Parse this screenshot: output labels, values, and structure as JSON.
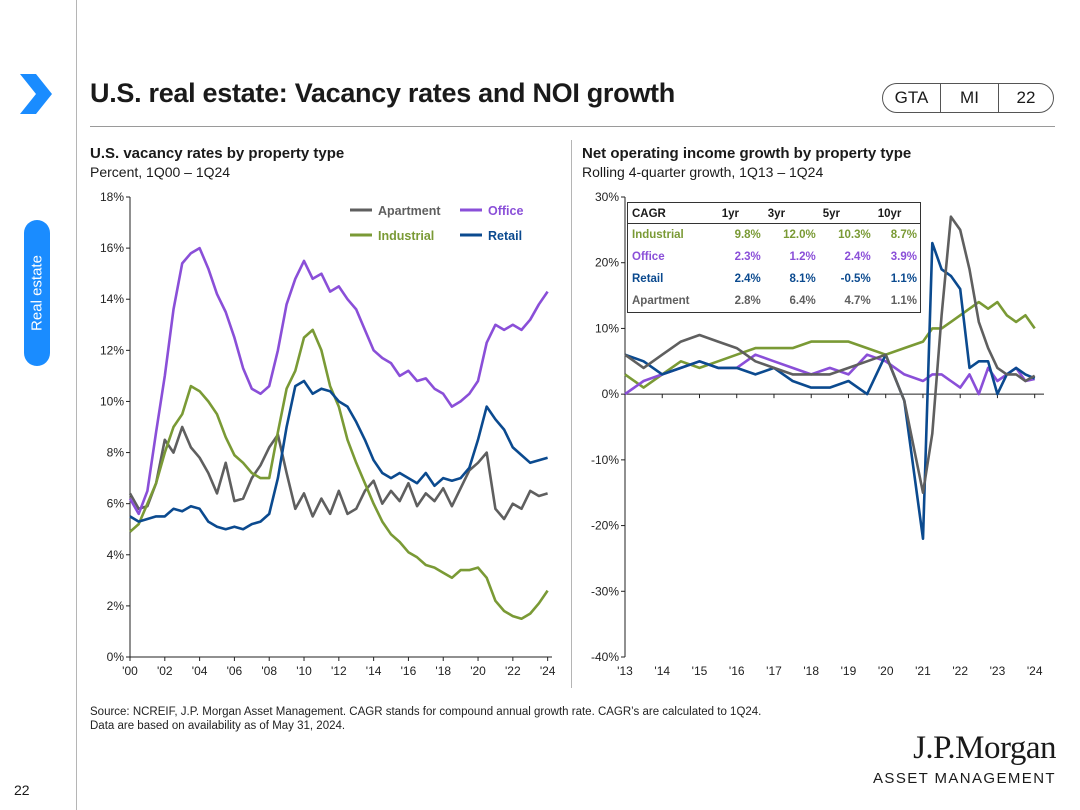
{
  "header": {
    "title": "U.S. real estate: Vacancy rates and NOI growth",
    "tags": [
      "GTA",
      "MI",
      "22"
    ],
    "side_tab": "Real estate",
    "page_number": "22"
  },
  "colors": {
    "apartment": "#5f5f5f",
    "office": "#8a4fd8",
    "industrial": "#7a9a35",
    "retail": "#0b4a8f",
    "accent": "#1a8cff"
  },
  "left": {
    "title": "U.S. vacancy rates by property type",
    "subtitle": "Percent, 1Q00 – 1Q24"
  },
  "right": {
    "title": "Net operating income growth by property type",
    "subtitle": "Rolling 4-quarter growth, 1Q13 – 1Q24"
  },
  "table": {
    "headers": [
      "CAGR",
      "1yr",
      "3yr",
      "5yr",
      "10yr"
    ],
    "rows": [
      {
        "name": "Industrial",
        "color": "#7a9a35",
        "values": [
          "9.8%",
          "12.0%",
          "10.3%",
          "8.7%"
        ]
      },
      {
        "name": "Office",
        "color": "#8a4fd8",
        "values": [
          "2.3%",
          "1.2%",
          "2.4%",
          "3.9%"
        ]
      },
      {
        "name": "Retail",
        "color": "#0b4a8f",
        "values": [
          "2.4%",
          "8.1%",
          "-0.5%",
          "1.1%"
        ]
      },
      {
        "name": "Apartment",
        "color": "#5f5f5f",
        "values": [
          "2.8%",
          "6.4%",
          "4.7%",
          "1.1%"
        ]
      }
    ]
  },
  "source": {
    "line1": "Source: NCREIF, J.P. Morgan Asset Management. CAGR stands for compound annual growth rate. CAGR’s are calculated to 1Q24.",
    "line2": "Data are based on availability as of May 31, 2024."
  },
  "logo": {
    "line1": "J.P.Morgan",
    "line2": "ASSET MANAGEMENT"
  },
  "chart_data": [
    {
      "type": "line",
      "title": "U.S. vacancy rates by property type",
      "ylabel": "Percent",
      "ylim": [
        0,
        18
      ],
      "yticks": [
        0,
        2,
        4,
        6,
        8,
        10,
        12,
        14,
        16,
        18
      ],
      "ytick_labels": [
        "0%",
        "2%",
        "4%",
        "6%",
        "8%",
        "10%",
        "12%",
        "14%",
        "16%",
        "18%"
      ],
      "xlim": [
        2000,
        2024.25
      ],
      "xticks": [
        2000,
        2002,
        2004,
        2006,
        2008,
        2010,
        2012,
        2014,
        2016,
        2018,
        2020,
        2022,
        2024
      ],
      "xtick_labels": [
        "'00",
        "'02",
        "'04",
        "'06",
        "'08",
        "'10",
        "'12",
        "'14",
        "'16",
        "'18",
        "'20",
        "'22",
        "'24"
      ],
      "legend": "top-right",
      "series": [
        {
          "name": "Apartment",
          "key": "apartment",
          "x": [
            2000,
            2000.5,
            2001,
            2001.5,
            2002,
            2002.5,
            2003,
            2003.5,
            2004,
            2004.5,
            2005,
            2005.5,
            2006,
            2006.5,
            2007,
            2007.5,
            2008,
            2008.5,
            2009,
            2009.5,
            2010,
            2010.5,
            2011,
            2011.5,
            2012,
            2012.5,
            2013,
            2013.5,
            2014,
            2014.5,
            2015,
            2015.5,
            2016,
            2016.5,
            2017,
            2017.5,
            2018,
            2018.5,
            2019,
            2019.5,
            2020,
            2020.5,
            2021,
            2021.5,
            2022,
            2022.5,
            2023,
            2023.5,
            2024
          ],
          "values": [
            6.4,
            5.8,
            5.9,
            6.8,
            8.5,
            8.0,
            9.0,
            8.2,
            7.8,
            7.2,
            6.4,
            7.6,
            6.1,
            6.2,
            7.0,
            7.5,
            8.2,
            8.7,
            7.2,
            5.8,
            6.4,
            5.5,
            6.2,
            5.6,
            6.5,
            5.6,
            5.8,
            6.5,
            6.9,
            6.0,
            6.5,
            6.1,
            6.8,
            5.9,
            6.4,
            6.1,
            6.6,
            5.9,
            6.6,
            7.3,
            7.6,
            8.0,
            5.8,
            5.4,
            6.0,
            5.8,
            6.5,
            6.3,
            6.4
          ]
        },
        {
          "name": "Office",
          "key": "office",
          "x": [
            2000,
            2000.5,
            2001,
            2001.5,
            2002,
            2002.5,
            2003,
            2003.5,
            2004,
            2004.5,
            2005,
            2005.5,
            2006,
            2006.5,
            2007,
            2007.5,
            2008,
            2008.5,
            2009,
            2009.5,
            2010,
            2010.5,
            2011,
            2011.5,
            2012,
            2012.5,
            2013,
            2013.5,
            2014,
            2014.5,
            2015,
            2015.5,
            2016,
            2016.5,
            2017,
            2017.5,
            2018,
            2018.5,
            2019,
            2019.5,
            2020,
            2020.5,
            2021,
            2021.5,
            2022,
            2022.5,
            2023,
            2023.5,
            2024
          ],
          "values": [
            6.2,
            5.6,
            6.5,
            8.8,
            11.0,
            13.6,
            15.4,
            15.8,
            16.0,
            15.2,
            14.2,
            13.5,
            12.5,
            11.3,
            10.5,
            10.3,
            10.6,
            12.0,
            13.8,
            14.8,
            15.5,
            14.8,
            15.0,
            14.3,
            14.5,
            14.0,
            13.6,
            12.8,
            12.0,
            11.7,
            11.5,
            11.0,
            11.2,
            10.8,
            10.9,
            10.5,
            10.3,
            9.8,
            10.0,
            10.3,
            10.8,
            12.3,
            13.0,
            12.8,
            13.0,
            12.8,
            13.2,
            13.8,
            14.3
          ]
        },
        {
          "name": "Industrial",
          "key": "industrial",
          "x": [
            2000,
            2000.5,
            2001,
            2001.5,
            2002,
            2002.5,
            2003,
            2003.5,
            2004,
            2004.5,
            2005,
            2005.5,
            2006,
            2006.5,
            2007,
            2007.5,
            2008,
            2008.5,
            2009,
            2009.5,
            2010,
            2010.5,
            2011,
            2011.5,
            2012,
            2012.5,
            2013,
            2013.5,
            2014,
            2014.5,
            2015,
            2015.5,
            2016,
            2016.5,
            2017,
            2017.5,
            2018,
            2018.5,
            2019,
            2019.5,
            2020,
            2020.5,
            2021,
            2021.5,
            2022,
            2022.5,
            2023,
            2023.5,
            2024
          ],
          "values": [
            4.9,
            5.2,
            6.0,
            6.8,
            8.0,
            9.0,
            9.5,
            10.6,
            10.4,
            10.0,
            9.5,
            8.6,
            7.9,
            7.6,
            7.2,
            7.0,
            7.0,
            8.8,
            10.5,
            11.2,
            12.5,
            12.8,
            12.0,
            10.6,
            9.8,
            8.5,
            7.6,
            6.8,
            6.0,
            5.3,
            4.8,
            4.5,
            4.1,
            3.9,
            3.6,
            3.5,
            3.3,
            3.1,
            3.4,
            3.4,
            3.5,
            3.1,
            2.2,
            1.8,
            1.6,
            1.5,
            1.7,
            2.1,
            2.6
          ]
        },
        {
          "name": "Retail",
          "key": "retail",
          "x": [
            2000,
            2000.5,
            2001,
            2001.5,
            2002,
            2002.5,
            2003,
            2003.5,
            2004,
            2004.5,
            2005,
            2005.5,
            2006,
            2006.5,
            2007,
            2007.5,
            2008,
            2008.5,
            2009,
            2009.5,
            2010,
            2010.5,
            2011,
            2011.5,
            2012,
            2012.5,
            2013,
            2013.5,
            2014,
            2014.5,
            2015,
            2015.5,
            2016,
            2016.5,
            2017,
            2017.5,
            2018,
            2018.5,
            2019,
            2019.5,
            2020,
            2020.5,
            2021,
            2021.5,
            2022,
            2022.5,
            2023,
            2023.5,
            2024
          ],
          "values": [
            5.5,
            5.3,
            5.4,
            5.5,
            5.5,
            5.8,
            5.7,
            5.9,
            5.8,
            5.3,
            5.1,
            5.0,
            5.1,
            5.0,
            5.2,
            5.3,
            5.6,
            7.0,
            9.0,
            10.6,
            10.8,
            10.3,
            10.5,
            10.4,
            10.0,
            9.8,
            9.2,
            8.5,
            7.7,
            7.2,
            7.0,
            7.2,
            7.0,
            6.8,
            7.2,
            6.7,
            7.0,
            6.9,
            7.0,
            7.4,
            8.5,
            9.8,
            9.3,
            8.9,
            8.2,
            7.9,
            7.6,
            7.7,
            7.8
          ]
        }
      ]
    },
    {
      "type": "line",
      "title": "Net operating income growth by property type",
      "ylabel": "Rolling 4-quarter growth",
      "ylim": [
        -40,
        30
      ],
      "yticks": [
        -40,
        -30,
        -20,
        -10,
        0,
        10,
        20,
        30
      ],
      "ytick_labels": [
        "-40%",
        "-30%",
        "-20%",
        "-10%",
        "0%",
        "10%",
        "20%",
        "30%"
      ],
      "xlim": [
        2013,
        2024.25
      ],
      "xticks": [
        2013,
        2014,
        2015,
        2016,
        2017,
        2018,
        2019,
        2020,
        2021,
        2022,
        2023,
        2024
      ],
      "xtick_labels": [
        "'13",
        "'14",
        "'15",
        "'16",
        "'17",
        "'18",
        "'19",
        "'20",
        "'21",
        "'22",
        "'23",
        "'24"
      ],
      "series": [
        {
          "name": "Industrial",
          "key": "industrial",
          "x": [
            2013,
            2013.5,
            2014,
            2014.5,
            2015,
            2015.5,
            2016,
            2016.5,
            2017,
            2017.5,
            2018,
            2018.5,
            2019,
            2019.5,
            2020,
            2020.5,
            2021,
            2021.25,
            2021.5,
            2021.75,
            2022,
            2022.25,
            2022.5,
            2022.75,
            2023,
            2023.25,
            2023.5,
            2023.75,
            2024
          ],
          "values": [
            3,
            1,
            3,
            5,
            4,
            5,
            6,
            7,
            7,
            7,
            8,
            8,
            8,
            7,
            6,
            7,
            8,
            10,
            10,
            11,
            12,
            13,
            14,
            13,
            14,
            12,
            11,
            12,
            10
          ]
        },
        {
          "name": "Office",
          "key": "office",
          "x": [
            2013,
            2013.5,
            2014,
            2014.5,
            2015,
            2015.5,
            2016,
            2016.5,
            2017,
            2017.5,
            2018,
            2018.5,
            2019,
            2019.5,
            2020,
            2020.5,
            2021,
            2021.25,
            2021.5,
            2021.75,
            2022,
            2022.25,
            2022.5,
            2022.75,
            2023,
            2023.25,
            2023.5,
            2023.75,
            2024
          ],
          "values": [
            0,
            2,
            3,
            4,
            5,
            4,
            4,
            6,
            5,
            4,
            3,
            4,
            3,
            6,
            5,
            3,
            2,
            3,
            3,
            2,
            1,
            3,
            0,
            4,
            2,
            3,
            4,
            2,
            2.3
          ]
        },
        {
          "name": "Retail",
          "key": "retail",
          "x": [
            2013,
            2013.5,
            2014,
            2014.5,
            2015,
            2015.5,
            2016,
            2016.5,
            2017,
            2017.5,
            2018,
            2018.5,
            2019,
            2019.5,
            2020,
            2020.5,
            2021,
            2021.25,
            2021.5,
            2021.75,
            2022,
            2022.25,
            2022.5,
            2022.75,
            2023,
            2023.25,
            2023.5,
            2023.75,
            2024
          ],
          "values": [
            6,
            5,
            3,
            4,
            5,
            4,
            4,
            3,
            4,
            2,
            1,
            1,
            2,
            0,
            6,
            -1,
            -22,
            23,
            19,
            18,
            16,
            4,
            5,
            5,
            0,
            3,
            4,
            3,
            2.4
          ]
        },
        {
          "name": "Apartment",
          "key": "apartment",
          "x": [
            2013,
            2013.5,
            2014,
            2014.5,
            2015,
            2015.5,
            2016,
            2016.5,
            2017,
            2017.5,
            2018,
            2018.5,
            2019,
            2019.5,
            2020,
            2020.5,
            2021,
            2021.25,
            2021.5,
            2021.75,
            2022,
            2022.25,
            2022.5,
            2022.75,
            2023,
            2023.25,
            2023.5,
            2023.75,
            2024
          ],
          "values": [
            6,
            4,
            6,
            8,
            9,
            8,
            7,
            5,
            4,
            3,
            3,
            3,
            4,
            5,
            6,
            -1,
            -15,
            -6,
            12,
            27,
            25,
            19,
            11,
            7,
            4,
            3,
            3,
            2,
            2.8
          ]
        }
      ]
    }
  ]
}
